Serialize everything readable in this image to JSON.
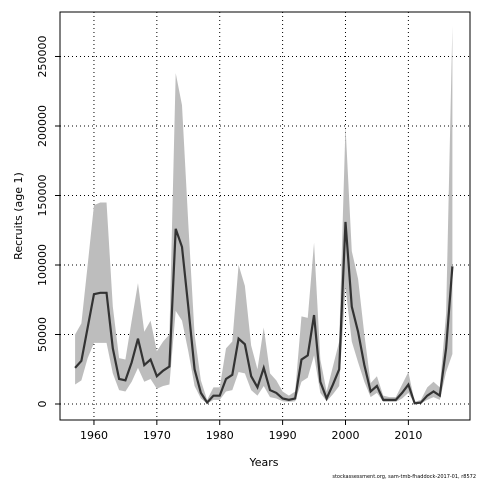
{
  "chart_data": {
    "type": "line_band",
    "ylabel": "Recruits (age 1)",
    "xlabel": "Years",
    "footnote": "stockassessment.org, sam-tmb-fhaddock-2017-01, r8572",
    "x": [
      1957,
      1958,
      1959,
      1960,
      1961,
      1962,
      1963,
      1964,
      1965,
      1966,
      1967,
      1968,
      1969,
      1970,
      1971,
      1972,
      1973,
      1974,
      1975,
      1976,
      1977,
      1978,
      1979,
      1980,
      1981,
      1982,
      1983,
      1984,
      1985,
      1986,
      1987,
      1988,
      1989,
      1990,
      1991,
      1992,
      1993,
      1994,
      1995,
      1996,
      1997,
      1998,
      1999,
      2000,
      2001,
      2002,
      2003,
      2004,
      2005,
      2006,
      2007,
      2008,
      2009,
      2010,
      2011,
      2012,
      2013,
      2014,
      2015,
      2016,
      2017
    ],
    "values": [
      26000,
      31000,
      55000,
      79000,
      80000,
      80000,
      40000,
      18000,
      17000,
      30000,
      47000,
      28000,
      32000,
      20000,
      24000,
      27000,
      126000,
      113000,
      70000,
      25000,
      8000,
      1000,
      6000,
      6000,
      18000,
      21000,
      47000,
      43000,
      20000,
      12000,
      26000,
      10000,
      8000,
      4000,
      3000,
      4000,
      32000,
      35000,
      64000,
      16000,
      4000,
      14000,
      25000,
      131000,
      70000,
      52000,
      28000,
      9000,
      13000,
      3000,
      3000,
      3000,
      8000,
      14000,
      500,
      1000,
      6000,
      9000,
      6000,
      40000,
      99000
    ],
    "upper": [
      50000,
      58000,
      100000,
      143000,
      145000,
      145000,
      70000,
      33000,
      32000,
      60000,
      87000,
      52000,
      60000,
      38000,
      45000,
      50000,
      238000,
      215000,
      130000,
      50000,
      17000,
      3000,
      12000,
      12000,
      40000,
      45000,
      100000,
      85000,
      42000,
      25000,
      55000,
      22000,
      17000,
      9000,
      6000,
      9000,
      63000,
      62000,
      116000,
      32000,
      9000,
      27000,
      45000,
      200000,
      110000,
      90000,
      50000,
      15000,
      20000,
      6000,
      5000,
      5000,
      14000,
      23000,
      1500,
      3000,
      12000,
      16000,
      12000,
      65000,
      272000
    ],
    "lower": [
      14000,
      17000,
      33000,
      44000,
      44000,
      44000,
      22000,
      10000,
      9000,
      16000,
      26000,
      16000,
      18000,
      11000,
      13000,
      14000,
      67000,
      60000,
      38000,
      13000,
      4000,
      300,
      3000,
      3000,
      9000,
      10000,
      23000,
      22000,
      10000,
      6000,
      13000,
      5000,
      4000,
      2000,
      1500,
      2000,
      16000,
      19000,
      35000,
      8000,
      2000,
      7000,
      13000,
      84000,
      45000,
      30000,
      16000,
      5000,
      8000,
      1500,
      1500,
      1500,
      4000,
      8000,
      200,
      500,
      3000,
      5000,
      3000,
      23000,
      36000
    ],
    "color": "#333333",
    "band_color": "#bdbdbd",
    "xlim": [
      1954.6,
      2019.8
    ],
    "ylim": [
      -11500,
      282000
    ],
    "xticks": [
      1960,
      1970,
      1980,
      1990,
      2000,
      2010
    ],
    "yticks": [
      0,
      50000,
      100000,
      150000,
      200000,
      250000
    ],
    "grid": true
  }
}
